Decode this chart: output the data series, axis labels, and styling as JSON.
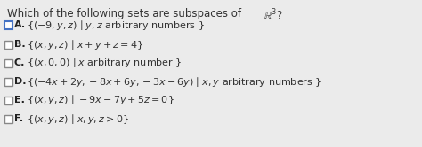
{
  "title_plain": "Which of the following sets are subspaces of ",
  "title_math": "$\\mathbb{R}^3$?",
  "background_color": "#ebebeb",
  "options": [
    {
      "label": "A.",
      "text": "$\\{(-9, y, z)\\mid y, z$ arbitrary numbers $\\}$",
      "checked": true,
      "check_border": "#4472c4"
    },
    {
      "label": "B.",
      "text": "$\\{(x, y, z)\\mid x+y+z=4\\}$",
      "checked": false,
      "check_border": "#888888"
    },
    {
      "label": "C.",
      "text": "$\\{(x, 0, 0)\\mid x$ arbitrary number $\\}$",
      "checked": false,
      "check_border": "#888888"
    },
    {
      "label": "D.",
      "text": "$\\{(-4x+2y, -8x+6y, -3x-6y)\\mid x, y$ arbitrary numbers $\\}$",
      "checked": false,
      "check_border": "#888888"
    },
    {
      "label": "E.",
      "text": "$\\{(x, y, z)\\mid -9x-7y+5z=0\\}$",
      "checked": false,
      "check_border": "#888888"
    },
    {
      "label": "F.",
      "text": "$\\{(x, y, z)\\mid x, y, z>0\\}$",
      "checked": false,
      "check_border": "#888888"
    }
  ],
  "text_color": "#333333",
  "label_color": "#222222",
  "title_fontsize": 8.5,
  "option_fontsize": 8.0,
  "label_fontsize": 8.0
}
